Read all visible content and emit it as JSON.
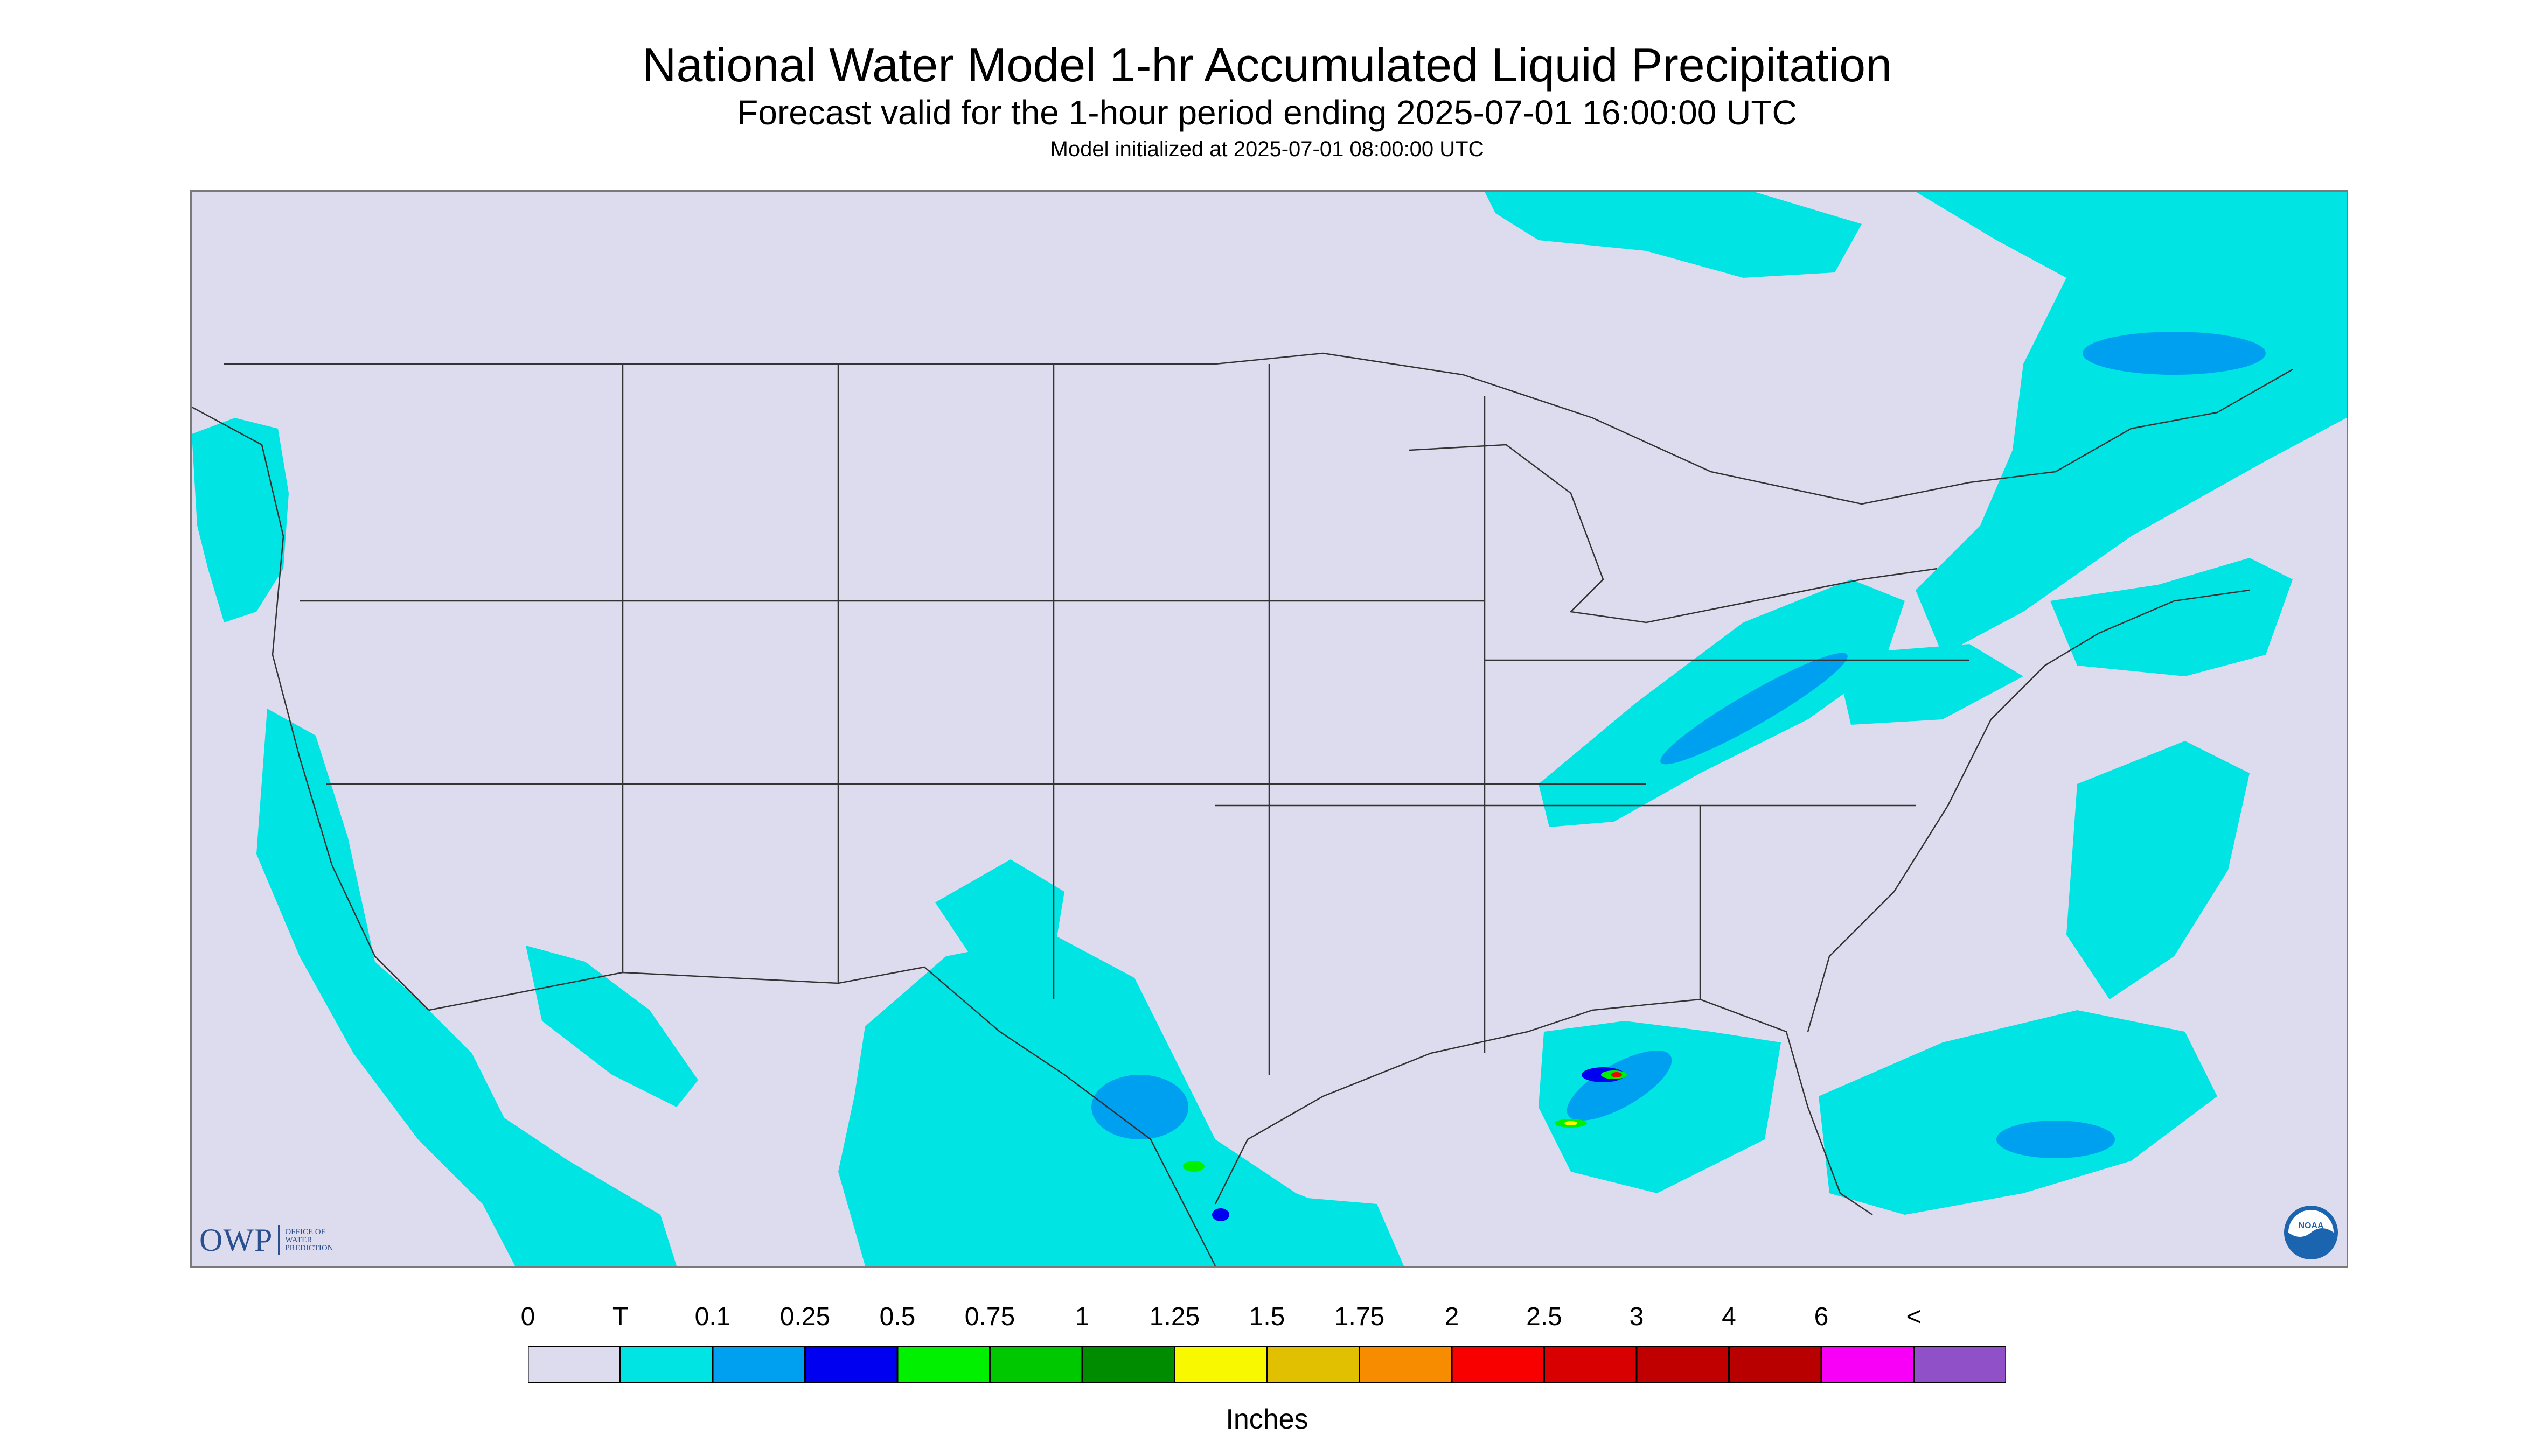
{
  "header": {
    "title": "National Water Model 1-hr Accumulated Liquid Precipitation",
    "subtitle": "Forecast valid for the 1-hour period ending 2025-07-01 16:00:00 UTC",
    "init_line": "Model initialized at 2025-07-01 08:00:00 UTC"
  },
  "map": {
    "background_color": "#dcdcee",
    "boundary_color": "#333333",
    "precip_colors": {
      "trace": "#00e4e4",
      "light": "#00a0f0",
      "moderate": "#0000f0",
      "heavy_green": "#00f000",
      "heavy_yellow": "#f8f800",
      "heavy_red": "#f80000"
    }
  },
  "logos": {
    "owp": {
      "text": "OWP",
      "sub": [
        "OFFICE OF",
        "WATER",
        "PREDICTION"
      ]
    },
    "noaa": {
      "text": "NOAA"
    }
  },
  "legend": {
    "labels": [
      "0",
      "T",
      "0.1",
      "0.25",
      "0.5",
      "0.75",
      "1",
      "1.25",
      "1.5",
      "1.75",
      "2",
      "2.5",
      "3",
      "4",
      "6",
      "<"
    ],
    "colors": [
      "#dcdcee",
      "#00e4e4",
      "#00a0f0",
      "#0000f0",
      "#00f000",
      "#00c800",
      "#008c00",
      "#f8f800",
      "#e0c000",
      "#f88c00",
      "#f80000",
      "#d80000",
      "#c00000",
      "#b80000",
      "#f800f8",
      "#9050c8"
    ],
    "units": "Inches"
  }
}
